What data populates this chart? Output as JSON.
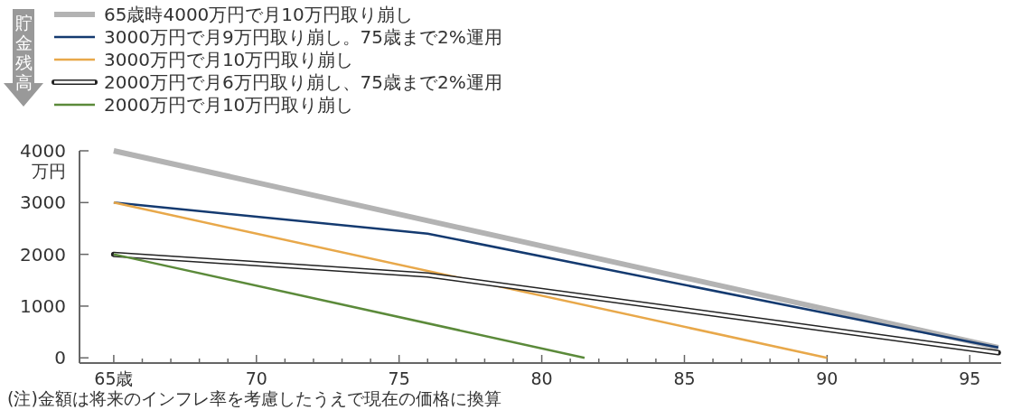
{
  "chart_data": {
    "type": "line",
    "ylabel": "貯金残高",
    "annotations": [
      "万円",
      "(注)金額は将来のインフレ率を考慮したうえで現在の価格に換算"
    ],
    "xlim": [
      63.8,
      96.1
    ],
    "ylim": [
      -100,
      4000
    ],
    "xticks": [
      {
        "value": 65,
        "label": "65歳"
      },
      {
        "value": 66,
        "label": null
      },
      {
        "value": 67,
        "label": null
      },
      {
        "value": 68,
        "label": null
      },
      {
        "value": 69,
        "label": null
      },
      70,
      {
        "value": 71,
        "label": null
      },
      {
        "value": 72,
        "label": null
      },
      {
        "value": 73,
        "label": null
      },
      {
        "value": 74,
        "label": null
      },
      75,
      {
        "value": 76,
        "label": null
      },
      {
        "value": 77,
        "label": null
      },
      {
        "value": 78,
        "label": null
      },
      {
        "value": 79,
        "label": null
      },
      80,
      {
        "value": 81,
        "label": null
      },
      {
        "value": 82,
        "label": null
      },
      {
        "value": 83,
        "label": null
      },
      {
        "value": 84,
        "label": null
      },
      85,
      {
        "value": 86,
        "label": null
      },
      {
        "value": 87,
        "label": null
      },
      {
        "value": 88,
        "label": null
      },
      {
        "value": 89,
        "label": null
      },
      90,
      {
        "value": 91,
        "label": null
      },
      {
        "value": 92,
        "label": null
      },
      {
        "value": 93,
        "label": null
      },
      {
        "value": 94,
        "label": null
      },
      95
    ],
    "yticks": [
      0,
      1000,
      2000,
      3000,
      4000
    ],
    "grid": false,
    "legend": "top left",
    "marker": "none",
    "line_style": "solid",
    "series": [
      {
        "name": "65歳時4000万円で月10万円取り崩し",
        "color": "#b3b3b3",
        "x": [
          65,
          96
        ],
        "values": [
          4000,
          200
        ]
      },
      {
        "name": "3000万円で月9万円取り崩し。75歳まで2%運用",
        "color": "#143a70",
        "x": [
          65,
          76,
          96
        ],
        "values": [
          3000,
          2400,
          200
        ]
      },
      {
        "name": "3000万円で月10万円取り崩し",
        "color": "#e8a84a",
        "x": [
          65,
          90
        ],
        "values": [
          3000,
          0
        ]
      },
      {
        "name": "2000万円で月6万円取り崩し、75歳まで2%運用",
        "color": "#ffffff",
        "x": [
          65,
          76,
          96
        ],
        "values": [
          2000,
          1600,
          100
        ]
      },
      {
        "name": "2000万円で月10万円取り崩し",
        "color": "#5b8a3a",
        "x": [
          65,
          81.5
        ],
        "values": [
          2000,
          0
        ]
      }
    ]
  }
}
